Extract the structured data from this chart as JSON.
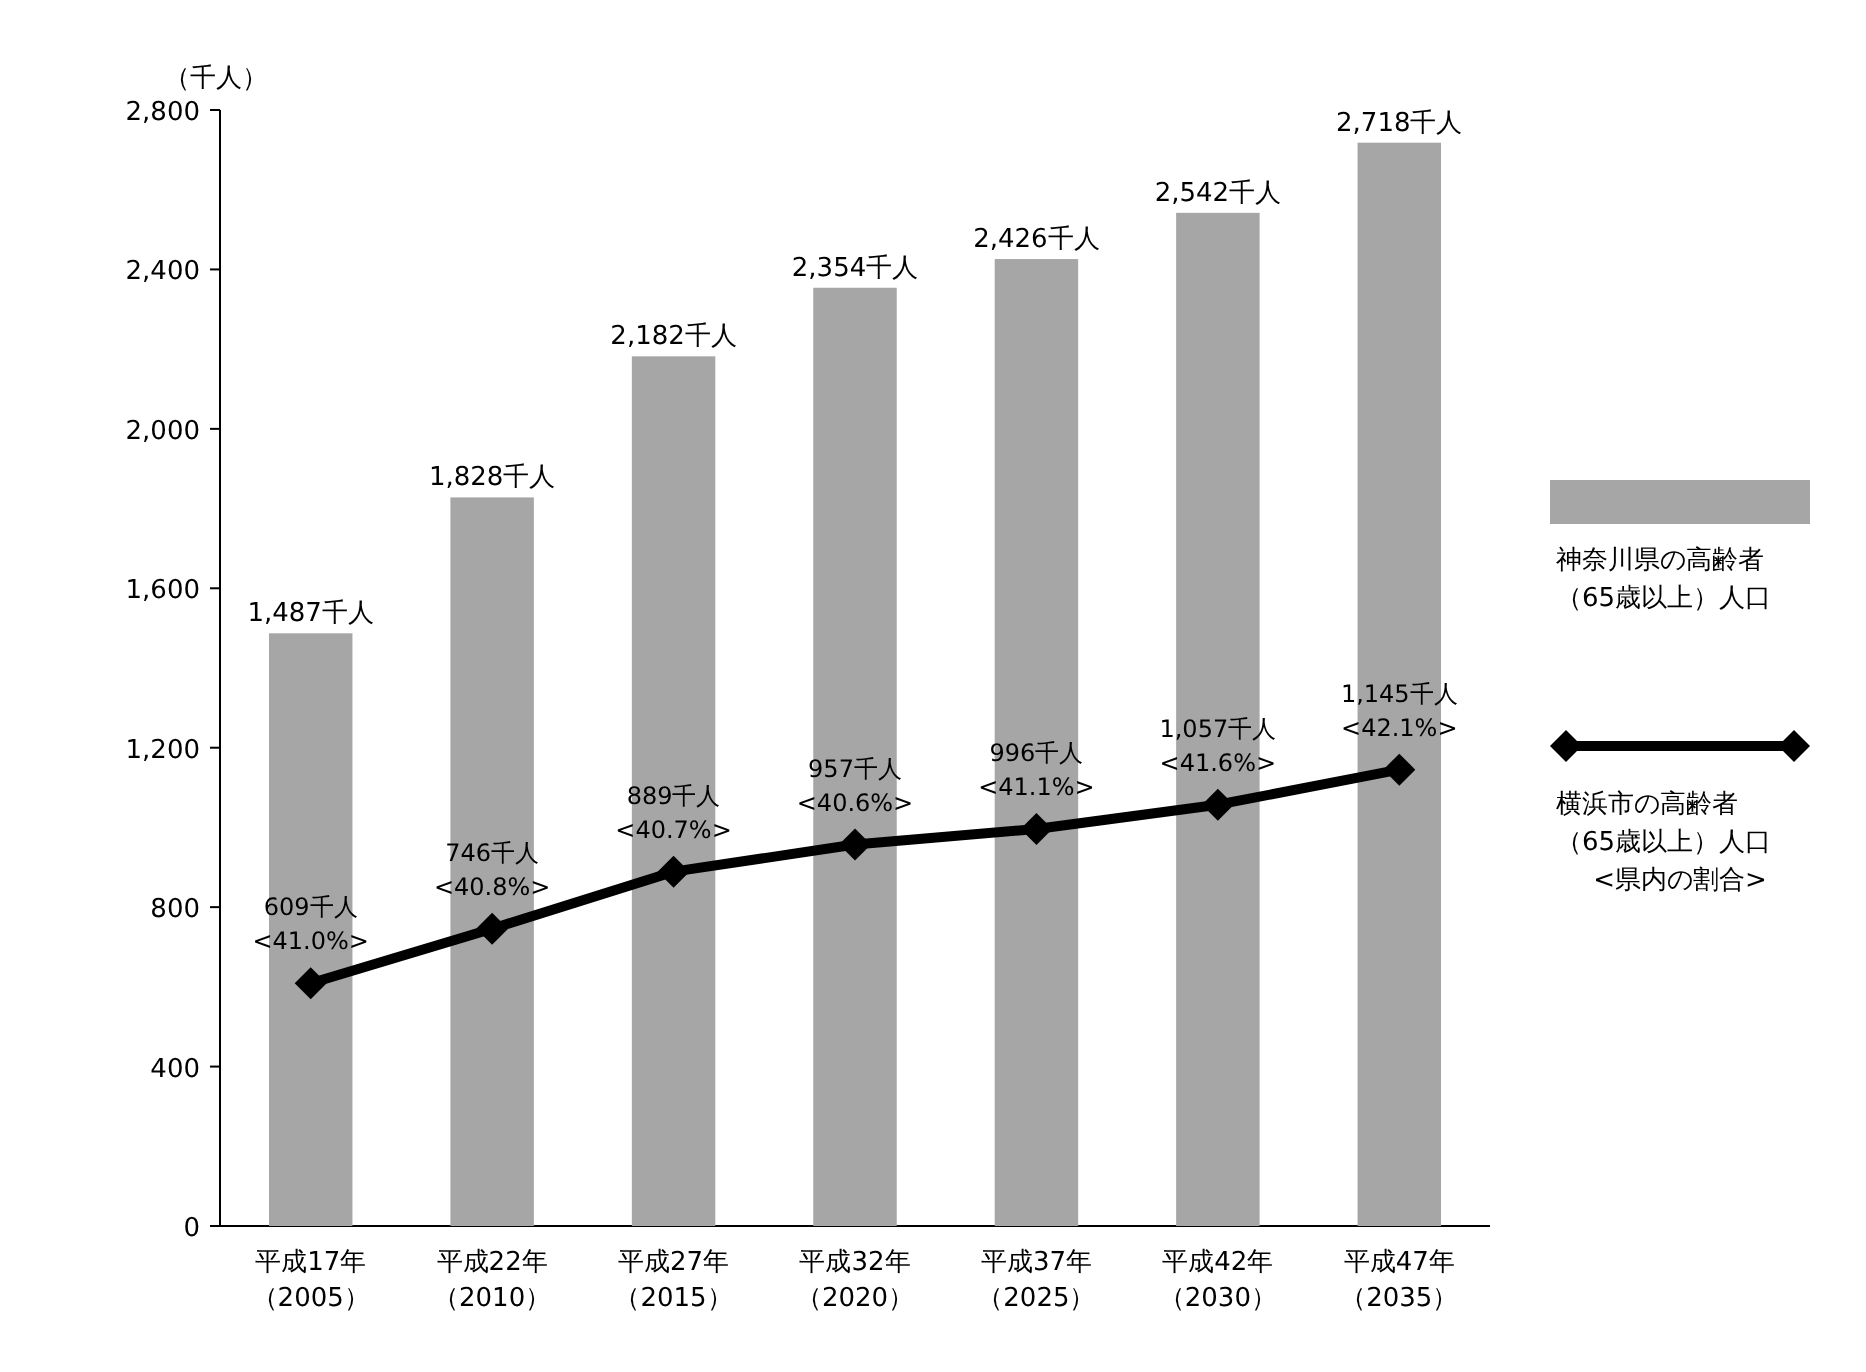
{
  "chart_data": {
    "type": "bar",
    "ylabel": "（千人）",
    "categories": [
      "平成17年（2005）",
      "平成22年（2010）",
      "平成27年（2015）",
      "平成32年（2020）",
      "平成37年（2025）",
      "平成42年（2030）",
      "平成47年（2035）"
    ],
    "series": [
      {
        "name": "神奈川県の高齢者（65歳以上）人口",
        "color": "#a6a6a6",
        "values": [
          1487,
          1828,
          2182,
          2354,
          2426,
          2542,
          2718
        ],
        "value_labels": [
          "1,487千人",
          "1,828千人",
          "2,182千人",
          "2,354千人",
          "2,426千人",
          "2,542千人",
          "2,718千人"
        ]
      },
      {
        "name": "横浜市の高齢者（65歳以上）人口",
        "type": "line",
        "color": "#000000",
        "marker": "diamond",
        "values": [
          609,
          746,
          889,
          957,
          996,
          1057,
          1145
        ],
        "value_labels": [
          "609千人\n<41.0%>",
          "746千人\n<40.8%>",
          "889千人\n<40.7%>",
          "957千人\n<40.6%>",
          "996千人\n<41.1%>",
          "1,057千人\n<41.6%>",
          "1,145千人\n<42.1%>"
        ]
      }
    ],
    "ylim": [
      0,
      2800
    ],
    "yticks": [
      {
        "value": 0,
        "label": "0"
      },
      {
        "value": 400,
        "label": "400"
      },
      {
        "value": 800,
        "label": "800"
      },
      {
        "value": 1200,
        "label": "1,200"
      },
      {
        "value": 1600,
        "label": "1,600"
      },
      {
        "value": 2000,
        "label": "2,000"
      },
      {
        "value": 2400,
        "label": "2,400"
      },
      {
        "value": 2800,
        "label": "2,800"
      }
    ],
    "legend": "right",
    "grid": false,
    "annotations": [
      "<県内の割合>"
    ]
  }
}
